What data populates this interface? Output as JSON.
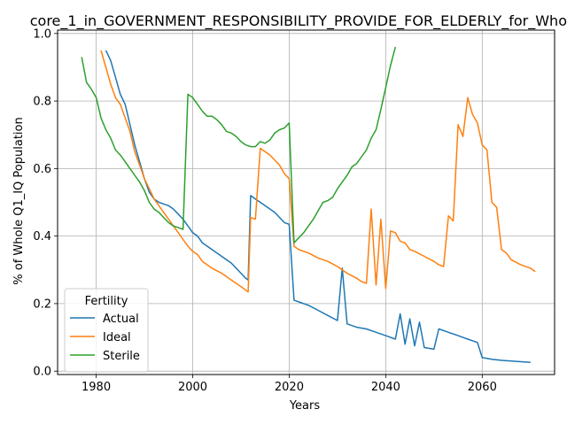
{
  "chart_data": {
    "type": "line",
    "title": "core_1_in_GOVERNMENT_RESPONSIBILITY_PROVIDE_FOR_ELDERLY_for_Whole",
    "xlabel": "Years",
    "ylabel": "% of Whole Q1_IQ Population",
    "xlim": [
      1972,
      2075
    ],
    "ylim": [
      -0.01,
      1.01
    ],
    "xticks": [
      1980,
      2000,
      2020,
      2040,
      2060
    ],
    "yticks": [
      0.0,
      0.2,
      0.4,
      0.6,
      0.8,
      1.0
    ],
    "xtick_labels": [
      "1980",
      "2000",
      "2020",
      "2040",
      "2060"
    ],
    "ytick_labels": [
      "0.0",
      "0.2",
      "0.4",
      "0.6",
      "0.8",
      "1.0"
    ],
    "grid": true,
    "legend": {
      "title": "Fertility",
      "placement": "lower-left"
    },
    "series": [
      {
        "name": "Actual",
        "color": "#1f77b4",
        "points": [
          [
            1982,
            0.95
          ],
          [
            1983,
            0.92
          ],
          [
            1984,
            0.87
          ],
          [
            1985,
            0.82
          ],
          [
            1986,
            0.79
          ],
          [
            1987,
            0.73
          ],
          [
            1988,
            0.67
          ],
          [
            1989,
            0.62
          ],
          [
            1990,
            0.57
          ],
          [
            1991,
            0.53
          ],
          [
            1992,
            0.51
          ],
          [
            1993,
            0.5
          ],
          [
            1994,
            0.495
          ],
          [
            1995,
            0.49
          ],
          [
            1996,
            0.48
          ],
          [
            1997,
            0.465
          ],
          [
            1998,
            0.45
          ],
          [
            1999,
            0.43
          ],
          [
            2000,
            0.41
          ],
          [
            2001,
            0.4
          ],
          [
            2002,
            0.38
          ],
          [
            2004,
            0.36
          ],
          [
            2006,
            0.34
          ],
          [
            2008,
            0.32
          ],
          [
            2010,
            0.29
          ],
          [
            2011,
            0.275
          ],
          [
            2011.5,
            0.27
          ],
          [
            2012,
            0.52
          ],
          [
            2013,
            0.51
          ],
          [
            2015,
            0.49
          ],
          [
            2017,
            0.47
          ],
          [
            2019,
            0.44
          ],
          [
            2020,
            0.435
          ],
          [
            2021,
            0.21
          ],
          [
            2022,
            0.205
          ],
          [
            2024,
            0.195
          ],
          [
            2026,
            0.18
          ],
          [
            2028,
            0.165
          ],
          [
            2030,
            0.15
          ],
          [
            2031,
            0.305
          ],
          [
            2032,
            0.14
          ],
          [
            2034,
            0.13
          ],
          [
            2036,
            0.125
          ],
          [
            2038,
            0.115
          ],
          [
            2040,
            0.105
          ],
          [
            2042,
            0.095
          ],
          [
            2043,
            0.17
          ],
          [
            2044,
            0.08
          ],
          [
            2045,
            0.155
          ],
          [
            2046,
            0.075
          ],
          [
            2047,
            0.145
          ],
          [
            2048,
            0.07
          ],
          [
            2050,
            0.065
          ],
          [
            2051,
            0.125
          ],
          [
            2053,
            0.115
          ],
          [
            2055,
            0.105
          ],
          [
            2057,
            0.095
          ],
          [
            2059,
            0.085
          ],
          [
            2060,
            0.04
          ],
          [
            2062,
            0.035
          ],
          [
            2064,
            0.032
          ],
          [
            2066,
            0.03
          ],
          [
            2068,
            0.028
          ],
          [
            2070,
            0.026
          ]
        ]
      },
      {
        "name": "Ideal",
        "color": "#ff7f0e",
        "points": [
          [
            1981,
            0.95
          ],
          [
            1982,
            0.9
          ],
          [
            1983,
            0.85
          ],
          [
            1984,
            0.81
          ],
          [
            1985,
            0.79
          ],
          [
            1986,
            0.75
          ],
          [
            1987,
            0.71
          ],
          [
            1988,
            0.65
          ],
          [
            1989,
            0.61
          ],
          [
            1990,
            0.57
          ],
          [
            1991,
            0.54
          ],
          [
            1992,
            0.51
          ],
          [
            1993,
            0.49
          ],
          [
            1994,
            0.47
          ],
          [
            1995,
            0.45
          ],
          [
            1996,
            0.43
          ],
          [
            1997,
            0.41
          ],
          [
            1998,
            0.39
          ],
          [
            1999,
            0.37
          ],
          [
            2000,
            0.355
          ],
          [
            2001,
            0.345
          ],
          [
            2002,
            0.325
          ],
          [
            2004,
            0.305
          ],
          [
            2006,
            0.29
          ],
          [
            2008,
            0.27
          ],
          [
            2010,
            0.25
          ],
          [
            2011,
            0.24
          ],
          [
            2011.5,
            0.235
          ],
          [
            2012,
            0.455
          ],
          [
            2013,
            0.45
          ],
          [
            2014,
            0.66
          ],
          [
            2016,
            0.64
          ],
          [
            2018,
            0.61
          ],
          [
            2019,
            0.585
          ],
          [
            2020,
            0.57
          ],
          [
            2021,
            0.37
          ],
          [
            2022,
            0.36
          ],
          [
            2024,
            0.35
          ],
          [
            2026,
            0.335
          ],
          [
            2028,
            0.325
          ],
          [
            2030,
            0.31
          ],
          [
            2032,
            0.29
          ],
          [
            2034,
            0.275
          ],
          [
            2035,
            0.265
          ],
          [
            2036,
            0.26
          ],
          [
            2037,
            0.48
          ],
          [
            2038,
            0.255
          ],
          [
            2039,
            0.45
          ],
          [
            2040,
            0.245
          ],
          [
            2041,
            0.415
          ],
          [
            2042,
            0.41
          ],
          [
            2043,
            0.385
          ],
          [
            2044,
            0.38
          ],
          [
            2045,
            0.36
          ],
          [
            2046,
            0.355
          ],
          [
            2048,
            0.34
          ],
          [
            2050,
            0.325
          ],
          [
            2051,
            0.315
          ],
          [
            2052,
            0.31
          ],
          [
            2053,
            0.46
          ],
          [
            2054,
            0.445
          ],
          [
            2055,
            0.73
          ],
          [
            2056,
            0.695
          ],
          [
            2057,
            0.81
          ],
          [
            2058,
            0.76
          ],
          [
            2059,
            0.735
          ],
          [
            2060,
            0.67
          ],
          [
            2061,
            0.655
          ],
          [
            2062,
            0.5
          ],
          [
            2063,
            0.485
          ],
          [
            2064,
            0.36
          ],
          [
            2065,
            0.35
          ],
          [
            2066,
            0.33
          ],
          [
            2068,
            0.315
          ],
          [
            2070,
            0.305
          ],
          [
            2071,
            0.295
          ]
        ]
      },
      {
        "name": "Sterile",
        "color": "#2ca02c",
        "points": [
          [
            1977,
            0.93
          ],
          [
            1978,
            0.855
          ],
          [
            1979,
            0.835
          ],
          [
            1980,
            0.81
          ],
          [
            1981,
            0.75
          ],
          [
            1982,
            0.715
          ],
          [
            1983,
            0.69
          ],
          [
            1984,
            0.655
          ],
          [
            1985,
            0.64
          ],
          [
            1986,
            0.62
          ],
          [
            1987,
            0.6
          ],
          [
            1988,
            0.58
          ],
          [
            1989,
            0.56
          ],
          [
            1990,
            0.535
          ],
          [
            1991,
            0.5
          ],
          [
            1992,
            0.48
          ],
          [
            1993,
            0.47
          ],
          [
            1994,
            0.455
          ],
          [
            1995,
            0.44
          ],
          [
            1996,
            0.43
          ],
          [
            1997,
            0.425
          ],
          [
            1998,
            0.42
          ],
          [
            1999,
            0.82
          ],
          [
            2000,
            0.81
          ],
          [
            2001,
            0.79
          ],
          [
            2002,
            0.77
          ],
          [
            2003,
            0.755
          ],
          [
            2004,
            0.755
          ],
          [
            2005,
            0.745
          ],
          [
            2006,
            0.73
          ],
          [
            2007,
            0.71
          ],
          [
            2008,
            0.705
          ],
          [
            2009,
            0.695
          ],
          [
            2010,
            0.68
          ],
          [
            2011,
            0.67
          ],
          [
            2012,
            0.665
          ],
          [
            2013,
            0.665
          ],
          [
            2014,
            0.68
          ],
          [
            2015,
            0.675
          ],
          [
            2016,
            0.685
          ],
          [
            2017,
            0.705
          ],
          [
            2018,
            0.715
          ],
          [
            2019,
            0.72
          ],
          [
            2020,
            0.735
          ],
          [
            2021,
            0.38
          ],
          [
            2022,
            0.395
          ],
          [
            2023,
            0.41
          ],
          [
            2024,
            0.43
          ],
          [
            2025,
            0.45
          ],
          [
            2026,
            0.475
          ],
          [
            2027,
            0.5
          ],
          [
            2028,
            0.505
          ],
          [
            2029,
            0.515
          ],
          [
            2030,
            0.54
          ],
          [
            2031,
            0.56
          ],
          [
            2032,
            0.58
          ],
          [
            2033,
            0.605
          ],
          [
            2034,
            0.615
          ],
          [
            2035,
            0.635
          ],
          [
            2036,
            0.655
          ],
          [
            2037,
            0.69
          ],
          [
            2038,
            0.715
          ],
          [
            2039,
            0.775
          ],
          [
            2040,
            0.84
          ],
          [
            2041,
            0.905
          ],
          [
            2042,
            0.96
          ]
        ]
      }
    ]
  }
}
